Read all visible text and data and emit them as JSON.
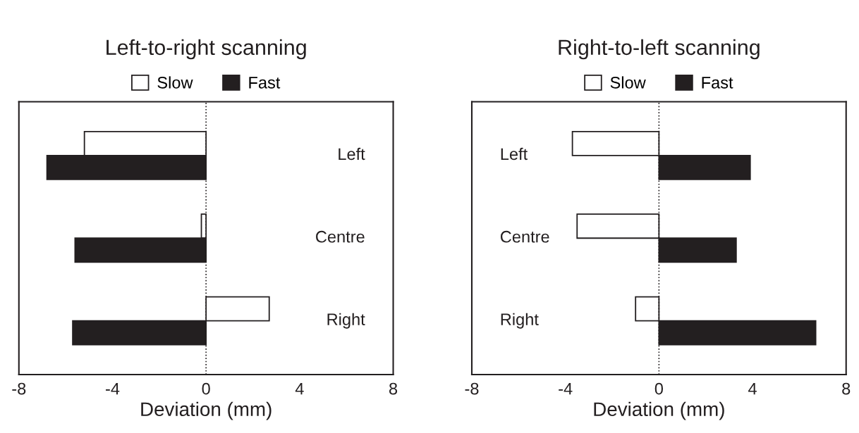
{
  "chart_data": [
    {
      "type": "bar",
      "orientation": "horizontal",
      "title": "Left-to-right scanning",
      "xlabel": "Deviation (mm)",
      "categories": [
        "Left",
        "Centre",
        "Right"
      ],
      "series": [
        {
          "name": "Slow",
          "color": "#ffffff",
          "values": [
            -5.2,
            -0.2,
            2.7
          ]
        },
        {
          "name": "Fast",
          "color": "#231f20",
          "values": [
            -6.8,
            -5.6,
            -5.7
          ]
        }
      ],
      "xlim": [
        -8,
        8
      ],
      "xticks": [
        -8,
        -4,
        0,
        4,
        8
      ],
      "ref_lines": [
        {
          "axis": "x",
          "value": 0,
          "line_style": "dotted",
          "color": "#231f20"
        }
      ],
      "legend": "top",
      "grid": false
    },
    {
      "type": "bar",
      "orientation": "horizontal",
      "title": "Right-to-left scanning",
      "xlabel": "Deviation (mm)",
      "categories": [
        "Left",
        "Centre",
        "Right"
      ],
      "series": [
        {
          "name": "Slow",
          "color": "#ffffff",
          "values": [
            -3.7,
            -3.5,
            -1.0
          ]
        },
        {
          "name": "Fast",
          "color": "#231f20",
          "values": [
            3.9,
            3.3,
            6.7
          ]
        }
      ],
      "xlim": [
        -8,
        8
      ],
      "xticks": [
        -8,
        -4,
        0,
        4,
        8
      ],
      "ref_lines": [
        {
          "axis": "x",
          "value": 0,
          "line_style": "dotted",
          "color": "#231f20"
        }
      ],
      "legend": "top",
      "grid": false
    }
  ]
}
